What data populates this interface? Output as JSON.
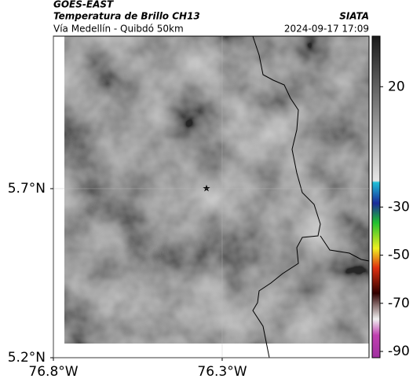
{
  "header": {
    "title": "GOES-EAST",
    "subtitle": "Temperatura de Brillo CH13",
    "route": "Vía Medellín - Quibdó 50km",
    "source": "SIATA",
    "timestamp": "2024-09-17 17:09"
  },
  "map": {
    "xlim": [
      -76.8,
      -75.865
    ],
    "ylim": [
      5.2,
      6.151
    ],
    "xticks": [
      {
        "value": -76.8,
        "label": "76.8°W"
      },
      {
        "value": -76.3,
        "label": "76.3°W"
      }
    ],
    "yticks": [
      {
        "value": 5.7,
        "label": "5.7°N"
      },
      {
        "value": 5.2,
        "label": "5.2°N"
      }
    ]
  },
  "colorbar": {
    "lim": [
      -92.6,
      41
    ],
    "ticks": [
      20,
      -30,
      -50,
      -70,
      -90
    ]
  }
}
